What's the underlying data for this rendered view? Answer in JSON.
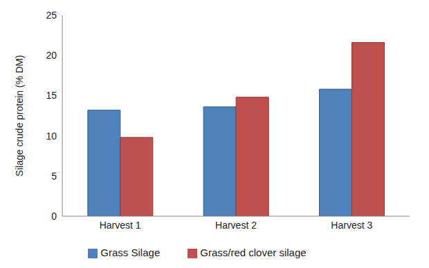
{
  "chart_data": {
    "type": "bar",
    "y_label": "Silage crude protein (% DM)",
    "categories": [
      "Harvest 1",
      "Harvest 2",
      "Harvest 3"
    ],
    "series": [
      {
        "name": "Grass Silage",
        "color": "#4f81bd",
        "values": [
          13.2,
          13.6,
          15.8
        ]
      },
      {
        "name": "Grass/red clover silage",
        "color": "#c0504d",
        "values": [
          9.8,
          14.8,
          21.6
        ]
      }
    ],
    "ylim": [
      0,
      25
    ],
    "yticks": [
      0,
      5,
      10,
      15,
      20,
      25
    ],
    "grid": false,
    "legend": "bottom",
    "data_labels": false
  }
}
